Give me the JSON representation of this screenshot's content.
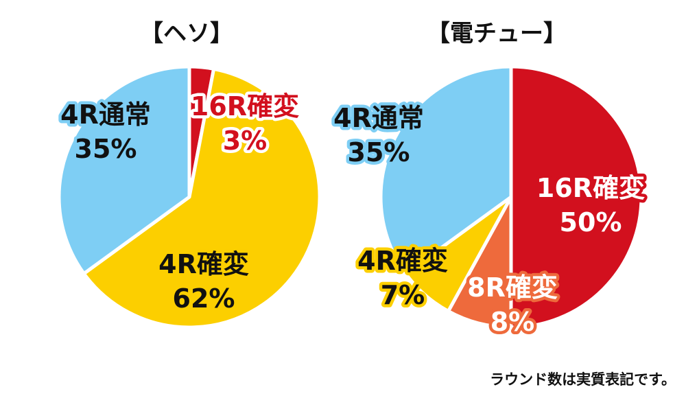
{
  "chart_data": [
    {
      "type": "pie",
      "title": "【ヘソ】",
      "slices": [
        {
          "label": "16R確変",
          "value": 3,
          "display": "3%",
          "color": "#d2101e",
          "label_fill": "#d2101e",
          "label_stroke": "#ffffff"
        },
        {
          "label": "4R確変",
          "value": 62,
          "display": "62%",
          "color": "#fccf00",
          "label_fill": "#111111",
          "label_stroke": "#fccf00"
        },
        {
          "label": "4R通常",
          "value": 35,
          "display": "35%",
          "color": "#7ecef4",
          "label_fill": "#111111",
          "label_stroke": "#7ecef4"
        }
      ]
    },
    {
      "type": "pie",
      "title": "【電チュー】",
      "slices": [
        {
          "label": "16R確変",
          "value": 50,
          "display": "50%",
          "color": "#d2101e",
          "label_fill": "#ffffff",
          "label_stroke": "#d2101e"
        },
        {
          "label": "8R確変",
          "value": 8,
          "display": "8%",
          "color": "#ee6a3c",
          "label_fill": "#ffffff",
          "label_stroke": "#ee6a3c"
        },
        {
          "label": "4R確変",
          "value": 7,
          "display": "7%",
          "color": "#fccf00",
          "label_fill": "#111111",
          "label_stroke": "#fccf00"
        },
        {
          "label": "4R通常",
          "value": 35,
          "display": "35%",
          "color": "#7ecef4",
          "label_fill": "#111111",
          "label_stroke": "#7ecef4"
        }
      ]
    }
  ],
  "footnote": "ラウンド数は実質表記です。"
}
